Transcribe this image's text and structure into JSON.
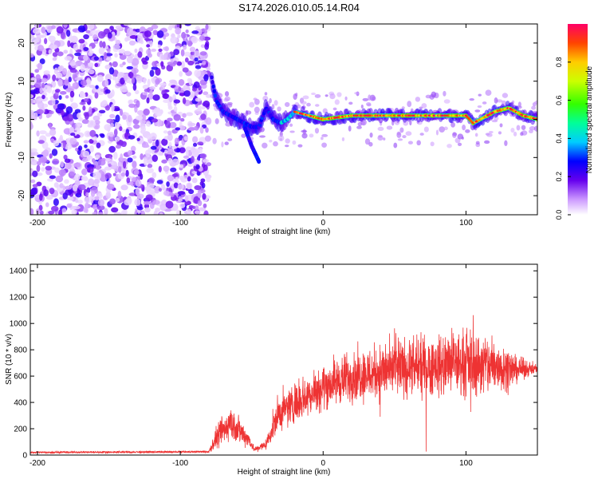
{
  "title": "S174.2026.010.05.14.R04",
  "chart_data": [
    {
      "type": "heatmap",
      "name": "spectrogram",
      "xlabel": "Height of straight line (km)",
      "ylabel": "Frequency (Hz)",
      "xlim": [
        -205,
        150
      ],
      "ylim": [
        -25,
        25
      ],
      "xticks": [
        -200,
        -100,
        0,
        100
      ],
      "yticks": [
        -20,
        -10,
        0,
        10,
        20
      ],
      "colorbar": {
        "label": "Normalized spectral amplitude",
        "range": [
          0,
          1
        ],
        "ticks": [
          0.0,
          0.2,
          0.4,
          0.6,
          0.8
        ]
      },
      "noise_region": [
        -205,
        -80
      ],
      "signal_ridge": [
        {
          "x": -78,
          "y": 11
        },
        {
          "x": -75,
          "y": 5
        },
        {
          "x": -70,
          "y": 2
        },
        {
          "x": -65,
          "y": 1
        },
        {
          "x": -60,
          "y": 0
        },
        {
          "x": -55,
          "y": -1
        },
        {
          "x": -50,
          "y": -2
        },
        {
          "x": -45,
          "y": -2
        },
        {
          "x": -40,
          "y": 3
        },
        {
          "x": -35,
          "y": 0
        },
        {
          "x": -30,
          "y": -1
        },
        {
          "x": -25,
          "y": 0
        },
        {
          "x": -20,
          "y": 2
        },
        {
          "x": -10,
          "y": 1
        },
        {
          "x": 0,
          "y": 0
        },
        {
          "x": 20,
          "y": 1
        },
        {
          "x": 50,
          "y": 1
        },
        {
          "x": 80,
          "y": 1
        },
        {
          "x": 100,
          "y": 1
        },
        {
          "x": 105,
          "y": -1
        },
        {
          "x": 110,
          "y": 0
        },
        {
          "x": 120,
          "y": 2
        },
        {
          "x": 130,
          "y": 3
        },
        {
          "x": 140,
          "y": 1
        },
        {
          "x": 150,
          "y": 0
        }
      ],
      "side_branch": [
        {
          "x": -55,
          "y": -2
        },
        {
          "x": -50,
          "y": -7
        },
        {
          "x": -45,
          "y": -11
        }
      ]
    },
    {
      "type": "line",
      "name": "snr",
      "xlabel": "Height of straight line (km)",
      "ylabel": "SNR (10 * v/v)",
      "xlim": [
        -205,
        150
      ],
      "ylim": [
        0,
        1450
      ],
      "xticks": [
        -200,
        -100,
        0,
        100
      ],
      "yticks": [
        0,
        200,
        400,
        600,
        800,
        1000,
        1200,
        1400
      ],
      "series": [
        {
          "name": "SNR",
          "color": "#ee3333",
          "envelope": [
            {
              "x": -205,
              "mean": 20,
              "spread": 10
            },
            {
              "x": -80,
              "mean": 25,
              "spread": 12
            },
            {
              "x": -75,
              "mean": 120,
              "spread": 120
            },
            {
              "x": -65,
              "mean": 250,
              "spread": 200
            },
            {
              "x": -58,
              "mean": 180,
              "spread": 150
            },
            {
              "x": -52,
              "mean": 120,
              "spread": 80
            },
            {
              "x": -48,
              "mean": 40,
              "spread": 30
            },
            {
              "x": -40,
              "mean": 80,
              "spread": 60
            },
            {
              "x": -32,
              "mean": 300,
              "spread": 200
            },
            {
              "x": -20,
              "mean": 400,
              "spread": 220
            },
            {
              "x": 0,
              "mean": 520,
              "spread": 250
            },
            {
              "x": 20,
              "mean": 600,
              "spread": 280
            },
            {
              "x": 50,
              "mean": 650,
              "spread": 320
            },
            {
              "x": 80,
              "mean": 680,
              "spread": 330
            },
            {
              "x": 100,
              "mean": 700,
              "spread": 360
            },
            {
              "x": 120,
              "mean": 680,
              "spread": 340
            },
            {
              "x": 135,
              "mean": 650,
              "spread": 150
            },
            {
              "x": 150,
              "mean": 660,
              "spread": 40
            }
          ]
        }
      ]
    }
  ]
}
